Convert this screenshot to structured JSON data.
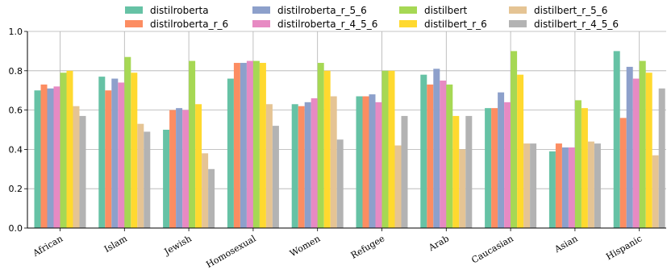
{
  "chart_data": {
    "type": "bar",
    "categories": [
      "African",
      "Islam",
      "Jewish",
      "Homosexual",
      "Women",
      "Refugee",
      "Arab",
      "Caucasian",
      "Asian",
      "Hispanic"
    ],
    "ylim": [
      0.0,
      1.0
    ],
    "yticks": [
      "0.0",
      "0.2",
      "0.4",
      "0.6",
      "0.8",
      "1.0"
    ],
    "grid": "vertical lines at categories and horizontal lines at y ticks",
    "legend_placement": "top-center",
    "series": [
      {
        "name": "distilroberta",
        "color": "#66c2a5",
        "values": [
          0.7,
          0.77,
          0.5,
          0.76,
          0.63,
          0.67,
          0.78,
          0.61,
          0.39,
          0.9
        ]
      },
      {
        "name": "distilroberta_r_6",
        "color": "#fc8d62",
        "values": [
          0.73,
          0.7,
          0.6,
          0.84,
          0.62,
          0.67,
          0.73,
          0.61,
          0.43,
          0.56
        ]
      },
      {
        "name": "distilroberta_r_5_6",
        "color": "#8da0cb",
        "values": [
          0.71,
          0.76,
          0.61,
          0.84,
          0.64,
          0.68,
          0.81,
          0.69,
          0.41,
          0.82
        ]
      },
      {
        "name": "distilroberta_r_4_5_6",
        "color": "#e78ac3",
        "values": [
          0.72,
          0.74,
          0.6,
          0.85,
          0.66,
          0.64,
          0.75,
          0.64,
          0.41,
          0.76
        ]
      },
      {
        "name": "distilbert",
        "color": "#a6d854",
        "values": [
          0.79,
          0.87,
          0.85,
          0.85,
          0.84,
          0.8,
          0.73,
          0.9,
          0.65,
          0.85
        ]
      },
      {
        "name": "distilbert_r_6",
        "color": "#ffd92f",
        "values": [
          0.8,
          0.79,
          0.63,
          0.84,
          0.8,
          0.8,
          0.57,
          0.78,
          0.61,
          0.79
        ]
      },
      {
        "name": "distilbert_r_5_6",
        "color": "#e5c494",
        "values": [
          0.62,
          0.53,
          0.38,
          0.63,
          0.67,
          0.42,
          0.4,
          0.43,
          0.44,
          0.37
        ]
      },
      {
        "name": "distilbert_r_4_5_6",
        "color": "#b3b3b3",
        "values": [
          0.57,
          0.49,
          0.3,
          0.52,
          0.45,
          0.57,
          0.57,
          0.43,
          0.43,
          0.71
        ]
      }
    ]
  }
}
